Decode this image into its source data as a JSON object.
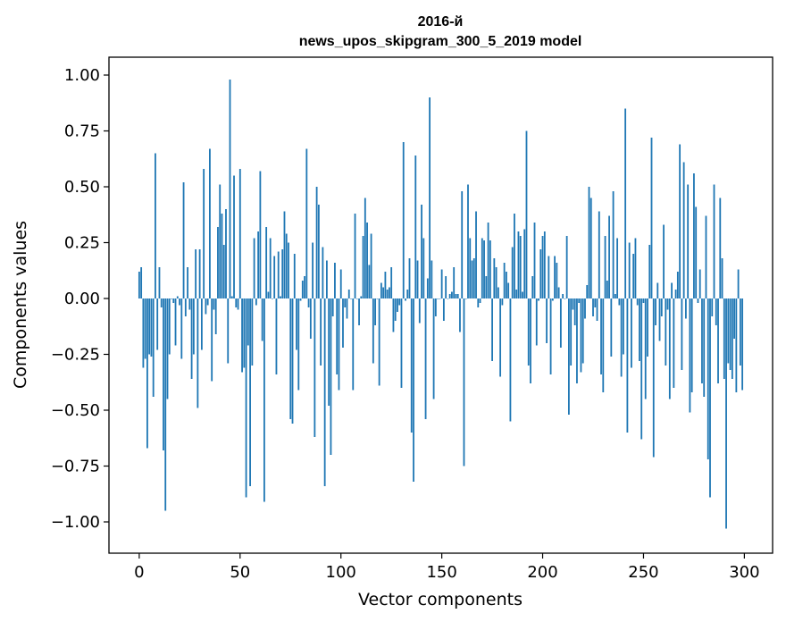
{
  "chart_data": {
    "type": "bar",
    "title_line1": "2016-й",
    "title_line2": "news_upos_skipgram_300_5_2019 model",
    "xlabel": "Vector components",
    "ylabel": "Components values",
    "xlim": [
      -15,
      314
    ],
    "ylim": [
      -1.14,
      1.08
    ],
    "xticks": [
      0,
      50,
      100,
      150,
      200,
      250,
      300
    ],
    "xtick_labels": [
      "0",
      "50",
      "100",
      "150",
      "200",
      "250",
      "300"
    ],
    "yticks": [
      1.0,
      0.75,
      0.5,
      0.25,
      0.0,
      -0.25,
      -0.5,
      -0.75,
      -1.0
    ],
    "ytick_labels": [
      "1.00",
      "0.75",
      "0.50",
      "0.25",
      "0.00",
      "−0.25",
      "−0.50",
      "−0.75",
      "−1.00"
    ],
    "bar_color": "#1f77b4",
    "values": [
      0.12,
      0.14,
      -0.31,
      -0.27,
      -0.67,
      -0.25,
      -0.26,
      -0.44,
      0.65,
      -0.23,
      0.14,
      -0.04,
      -0.68,
      -0.95,
      -0.45,
      -0.25,
      0.0,
      -0.02,
      -0.21,
      0.01,
      -0.03,
      -0.27,
      0.52,
      -0.08,
      0.14,
      -0.05,
      -0.36,
      -0.25,
      0.22,
      -0.49,
      0.22,
      -0.23,
      0.58,
      -0.07,
      -0.03,
      0.67,
      -0.37,
      -0.05,
      -0.16,
      0.32,
      0.51,
      0.38,
      0.24,
      0.4,
      -0.29,
      0.98,
      0.01,
      0.55,
      -0.04,
      -0.05,
      0.58,
      -0.33,
      -0.31,
      -0.89,
      -0.21,
      -0.84,
      -0.3,
      0.27,
      -0.03,
      0.3,
      0.57,
      -0.19,
      -0.91,
      0.32,
      0.03,
      0.27,
      0.0,
      0.19,
      -0.34,
      0.21,
      0.01,
      0.22,
      0.39,
      0.29,
      0.25,
      -0.54,
      -0.56,
      0.2,
      -0.23,
      -0.41,
      -0.01,
      0.08,
      0.1,
      0.67,
      -0.04,
      -0.18,
      0.25,
      -0.62,
      0.5,
      0.42,
      -0.3,
      0.23,
      -0.84,
      0.17,
      -0.48,
      -0.7,
      -0.08,
      0.16,
      -0.34,
      -0.41,
      0.13,
      -0.22,
      -0.04,
      -0.09,
      0.04,
      0.0,
      -0.41,
      0.38,
      0.0,
      -0.12,
      0.01,
      0.28,
      0.45,
      0.34,
      0.15,
      0.29,
      -0.29,
      -0.12,
      0.0,
      -0.39,
      0.07,
      0.05,
      0.12,
      0.04,
      0.05,
      0.14,
      -0.15,
      -0.1,
      -0.06,
      -0.03,
      -0.4,
      0.7,
      -0.01,
      0.04,
      0.18,
      -0.6,
      -0.82,
      0.64,
      0.17,
      -0.11,
      0.42,
      0.27,
      -0.54,
      0.09,
      0.9,
      0.17,
      -0.45,
      -0.08,
      0.0,
      0.0,
      0.13,
      -0.1,
      0.1,
      0.0,
      0.02,
      0.03,
      0.14,
      0.02,
      0.02,
      -0.15,
      0.48,
      -0.75,
      0.0,
      0.51,
      0.27,
      0.17,
      0.18,
      0.39,
      -0.04,
      -0.02,
      0.27,
      0.26,
      0.1,
      0.34,
      0.26,
      -0.28,
      0.18,
      0.14,
      0.05,
      -0.35,
      -0.03,
      0.16,
      0.12,
      0.07,
      -0.55,
      0.23,
      0.38,
      0.04,
      0.3,
      0.28,
      0.03,
      0.31,
      0.75,
      -0.3,
      -0.38,
      0.1,
      0.34,
      -0.21,
      -0.01,
      0.22,
      0.28,
      0.3,
      -0.2,
      0.19,
      -0.34,
      -0.01,
      0.19,
      0.16,
      0.05,
      -0.22,
      0.02,
      0.0,
      0.28,
      -0.52,
      -0.3,
      -0.05,
      -0.12,
      -0.38,
      -0.02,
      -0.33,
      -0.29,
      -0.09,
      0.06,
      0.5,
      0.45,
      -0.08,
      -0.04,
      -0.1,
      0.39,
      -0.34,
      -0.42,
      0.28,
      0.08,
      0.37,
      -0.26,
      0.48,
      0.02,
      0.27,
      -0.03,
      -0.35,
      -0.25,
      0.85,
      -0.6,
      0.25,
      -0.31,
      0.2,
      0.27,
      -0.03,
      -0.28,
      -0.63,
      -0.02,
      -0.45,
      -0.26,
      0.24,
      0.72,
      -0.71,
      -0.12,
      0.07,
      -0.19,
      -0.08,
      0.33,
      -0.3,
      -0.05,
      -0.45,
      0.07,
      -0.4,
      0.04,
      0.12,
      0.69,
      -0.32,
      0.61,
      -0.09,
      0.51,
      -0.51,
      -0.42,
      0.56,
      0.41,
      -0.02,
      0.13,
      -0.38,
      -0.44,
      0.37,
      -0.72,
      -0.89,
      -0.08,
      0.51,
      -0.12,
      -0.38,
      0.45,
      0.18,
      -0.36,
      -1.03,
      -0.29,
      -0.32,
      -0.36,
      -0.18,
      -0.42,
      0.13,
      -0.3,
      -0.41
    ]
  }
}
